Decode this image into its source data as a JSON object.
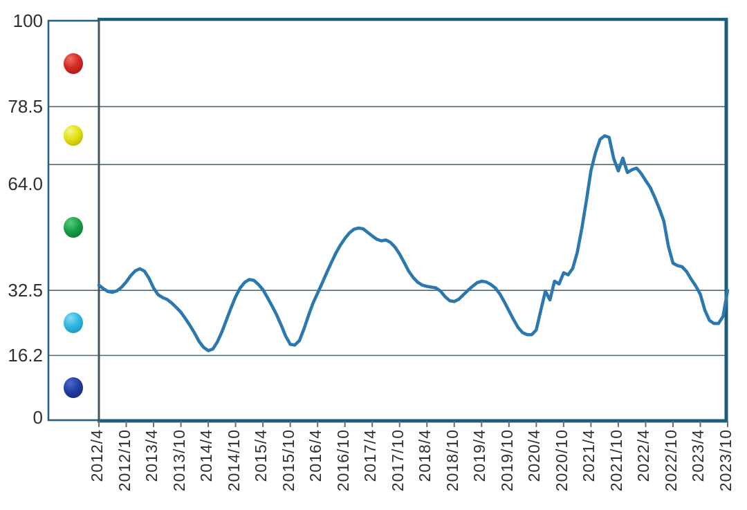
{
  "chart_data": {
    "type": "line",
    "title": "",
    "y_axis": {
      "range": [
        0,
        100
      ],
      "ticks": [
        {
          "label": "100",
          "value": 100
        },
        {
          "label": "78.5",
          "value": 78.5
        },
        {
          "label": "64.0",
          "value": 64.0
        },
        {
          "label": "32.5",
          "value": 32.5
        },
        {
          "label": "16.2",
          "value": 16.2
        },
        {
          "label": "0",
          "value": 0
        }
      ],
      "gridlines_at": [
        78.5,
        64.0,
        32.5,
        16.2
      ]
    },
    "x_axis": {
      "tick_labels": [
        "2012/4",
        "2012/10",
        "2013/4",
        "2013/10",
        "2014/4",
        "2014/10",
        "2015/4",
        "2015/10",
        "2016/4",
        "2016/10",
        "2017/4",
        "2017/10",
        "2018/4",
        "2018/10",
        "2019/4",
        "2019/10",
        "2020/4",
        "2020/10",
        "2021/4",
        "2021/10",
        "2022/4",
        "2022/10",
        "2023/4",
        "2023/10"
      ],
      "frequency": "monthly",
      "start": "2012/4",
      "end": "2023/10"
    },
    "series": [
      {
        "name": "index-line",
        "color": "#2b78ae",
        "start_month": "2012/4",
        "values": [
          33.8,
          32.9,
          32.2,
          32.0,
          32.4,
          33.3,
          34.6,
          36.2,
          37.4,
          37.9,
          37.3,
          35.5,
          33.1,
          31.4,
          30.7,
          30.2,
          29.3,
          28.2,
          27.0,
          25.4,
          23.7,
          21.8,
          19.7,
          18.2,
          17.4,
          17.8,
          19.6,
          22.1,
          25.1,
          28.1,
          30.9,
          33.1,
          34.5,
          35.2,
          35.0,
          34.0,
          32.7,
          30.7,
          28.6,
          26.4,
          23.8,
          21.0,
          19.0,
          18.8,
          19.9,
          22.8,
          26.2,
          29.3,
          31.8,
          34.3,
          36.9,
          39.4,
          41.8,
          43.8,
          45.5,
          46.9,
          47.8,
          48.1,
          47.9,
          47.0,
          46.1,
          45.3,
          44.9,
          45.1,
          44.5,
          43.3,
          41.6,
          39.5,
          37.3,
          35.7,
          34.5,
          33.8,
          33.5,
          33.3,
          33.1,
          32.3,
          30.9,
          29.9,
          29.7,
          30.3,
          31.4,
          32.5,
          33.5,
          34.4,
          34.8,
          34.6,
          34.0,
          33.1,
          31.6,
          29.6,
          27.4,
          25.2,
          23.2,
          21.9,
          21.4,
          21.4,
          22.6,
          27.5,
          32.3,
          30.1,
          34.8,
          34.1,
          36.9,
          36.4,
          38.0,
          42.0,
          48.0,
          55.0,
          62.5,
          67.0,
          70.3,
          71.2,
          70.8,
          65.5,
          62.4,
          65.6,
          62.0,
          62.7,
          63.1,
          61.8,
          60.0,
          58.3,
          55.8,
          53.0,
          49.8,
          43.5,
          39.3,
          38.7,
          38.4,
          37.2,
          35.3,
          33.6,
          31.5,
          27.5,
          25.0,
          24.2,
          24.2,
          26.0,
          32.5
        ]
      }
    ],
    "legend_balls": [
      {
        "name": "red",
        "color": "#d42822",
        "highlight": "#ef6f60",
        "shade": "#9c1410"
      },
      {
        "name": "yellow",
        "color": "#e3e00e",
        "highlight": "#f6f488",
        "shade": "#aaa800"
      },
      {
        "name": "green",
        "color": "#16a045",
        "highlight": "#5cc981",
        "shade": "#0a6b2e"
      },
      {
        "name": "cyan",
        "color": "#30b6de",
        "highlight": "#85dcf1",
        "shade": "#1489b0"
      },
      {
        "name": "navy",
        "color": "#1f3da0",
        "highlight": "#4d69ca",
        "shade": "#12266b"
      }
    ]
  },
  "colors": {
    "frame": "#1e5c7d",
    "box_border": "#27607e",
    "plot_left_border": "#42565f",
    "grid": "#53656d",
    "tick": "#6b6b6b",
    "text": "#2f2f2f",
    "background": "#ffffff"
  }
}
